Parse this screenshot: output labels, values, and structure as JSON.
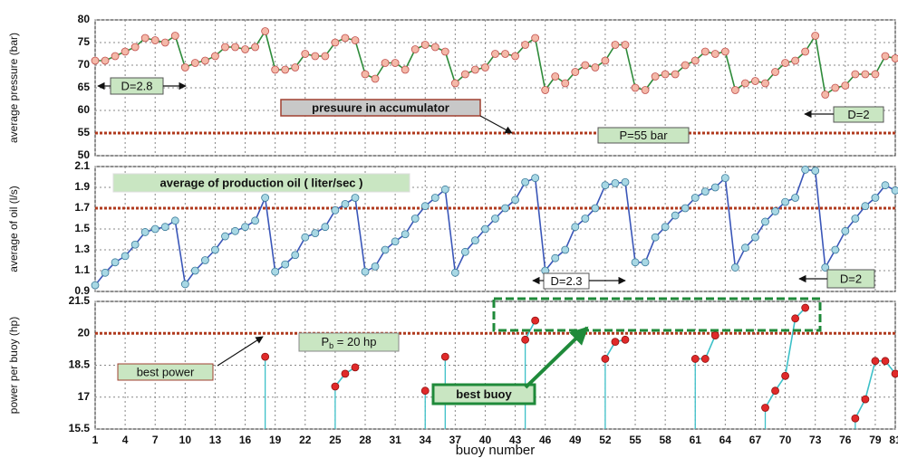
{
  "chart_data": [
    {
      "type": "line",
      "y_label": "average pressure (bar)",
      "x": [
        1,
        2,
        3,
        4,
        5,
        6,
        7,
        8,
        9,
        10,
        11,
        12,
        13,
        14,
        15,
        16,
        17,
        18,
        19,
        20,
        21,
        22,
        23,
        24,
        25,
        26,
        27,
        28,
        29,
        30,
        31,
        32,
        33,
        34,
        35,
        36,
        37,
        38,
        39,
        40,
        41,
        42,
        43,
        44,
        45,
        46,
        47,
        48,
        49,
        50,
        51,
        52,
        53,
        54,
        55,
        56,
        57,
        58,
        59,
        60,
        61,
        62,
        63,
        64,
        65,
        66,
        67,
        68,
        69,
        70,
        71,
        72,
        73,
        74,
        75,
        76,
        77,
        78,
        79,
        80,
        81
      ],
      "series": [
        {
          "color": "#2e8b3a",
          "marker_color": "#f4b8a8",
          "marker_edge": "#c0504d",
          "values": [
            71,
            71,
            72,
            73,
            74,
            76,
            75.5,
            75,
            76.5,
            69.5,
            70.5,
            71,
            72,
            74,
            74,
            73.5,
            74,
            77.5,
            69,
            69,
            69.5,
            72.5,
            72,
            72,
            75,
            76,
            75.5,
            68,
            67,
            70.5,
            70.5,
            69,
            73.5,
            74.5,
            74,
            73,
            66,
            68,
            69,
            69.5,
            72.5,
            72.5,
            72,
            74.5,
            76,
            64.5,
            67.5,
            66,
            68.5,
            70,
            69.5,
            71,
            74.5,
            74.5,
            65,
            64.5,
            67.5,
            68,
            68,
            70,
            71,
            73,
            72.5,
            73,
            64.5,
            66,
            66.5,
            66,
            68.5,
            70.5,
            71,
            73,
            76.5,
            63.5,
            65,
            65.5,
            68,
            68,
            68,
            72,
            71.5
          ]
        }
      ],
      "ylim": [
        50,
        80
      ],
      "yticks": [
        50,
        55,
        60,
        65,
        70,
        75,
        80
      ],
      "reference_line": {
        "value": 55,
        "color": "#b03a1e"
      },
      "annotations": [
        {
          "text": "D=2.8"
        },
        {
          "text": "presuure in accumulator"
        },
        {
          "text": "P=55 bar"
        },
        {
          "text": "D=2"
        }
      ],
      "grid": true
    },
    {
      "type": "line",
      "y_label": "average of oil (l/s)",
      "x": [
        1,
        2,
        3,
        4,
        5,
        6,
        7,
        8,
        9,
        10,
        11,
        12,
        13,
        14,
        15,
        16,
        17,
        18,
        19,
        20,
        21,
        22,
        23,
        24,
        25,
        26,
        27,
        28,
        29,
        30,
        31,
        32,
        33,
        34,
        35,
        36,
        37,
        38,
        39,
        40,
        41,
        42,
        43,
        44,
        45,
        46,
        47,
        48,
        49,
        50,
        51,
        52,
        53,
        54,
        55,
        56,
        57,
        58,
        59,
        60,
        61,
        62,
        63,
        64,
        65,
        66,
        67,
        68,
        69,
        70,
        71,
        72,
        73,
        74,
        75,
        76,
        77,
        78,
        79,
        80,
        81
      ],
      "series": [
        {
          "color": "#3a56b8",
          "marker_color": "#a8d8e4",
          "marker_edge": "#3a7a9a",
          "values": [
            0.96,
            1.08,
            1.18,
            1.24,
            1.35,
            1.47,
            1.5,
            1.52,
            1.58,
            0.97,
            1.1,
            1.2,
            1.3,
            1.43,
            1.48,
            1.52,
            1.58,
            1.8,
            1.09,
            1.16,
            1.25,
            1.42,
            1.46,
            1.52,
            1.68,
            1.74,
            1.8,
            1.09,
            1.14,
            1.3,
            1.38,
            1.45,
            1.6,
            1.72,
            1.8,
            1.88,
            1.08,
            1.28,
            1.39,
            1.5,
            1.6,
            1.7,
            1.78,
            1.95,
            1.99,
            1.1,
            1.22,
            1.3,
            1.52,
            1.6,
            1.7,
            1.92,
            1.94,
            1.95,
            1.18,
            1.18,
            1.42,
            1.52,
            1.63,
            1.7,
            1.8,
            1.86,
            1.9,
            1.99,
            1.13,
            1.32,
            1.42,
            1.57,
            1.67,
            1.76,
            1.8,
            2.07,
            2.06,
            1.13,
            1.3,
            1.48,
            1.6,
            1.72,
            1.8,
            1.92,
            1.87
          ]
        }
      ],
      "ylim": [
        0.9,
        2.1
      ],
      "yticks": [
        0.9,
        1.1,
        1.3,
        1.5,
        1.7,
        1.9,
        2.1
      ],
      "reference_line": {
        "value": 1.7,
        "color": "#b03a1e"
      },
      "annotations": [
        {
          "text": "average of production oil ( liter/sec )"
        },
        {
          "text": "D=2.3"
        },
        {
          "text": "D=2"
        }
      ],
      "grid": true
    },
    {
      "type": "line",
      "y_label": "power per buoy (hp)",
      "x_label": "buoy number",
      "x": [
        1,
        2,
        3,
        4,
        5,
        6,
        7,
        8,
        9,
        10,
        11,
        12,
        13,
        14,
        15,
        16,
        17,
        18,
        19,
        20,
        21,
        22,
        23,
        24,
        25,
        26,
        27,
        28,
        29,
        30,
        31,
        32,
        33,
        34,
        35,
        36,
        37,
        38,
        39,
        40,
        41,
        42,
        43,
        44,
        45,
        46,
        47,
        48,
        49,
        50,
        51,
        52,
        53,
        54,
        55,
        56,
        57,
        58,
        59,
        60,
        61,
        62,
        63,
        64,
        65,
        66,
        67,
        68,
        69,
        70,
        71,
        72,
        73,
        74,
        75,
        76,
        77,
        78,
        79,
        80,
        81
      ],
      "series": [
        {
          "color": "#3cc0c8",
          "marker_color": "#e02a2a",
          "marker_edge": "#901010",
          "values": [
            null,
            null,
            null,
            null,
            null,
            null,
            null,
            null,
            null,
            null,
            null,
            null,
            null,
            null,
            null,
            null,
            null,
            18.9,
            null,
            null,
            null,
            null,
            null,
            null,
            17.5,
            18.1,
            18.4,
            null,
            null,
            null,
            null,
            null,
            null,
            17.3,
            null,
            18.9,
            null,
            null,
            null,
            null,
            null,
            null,
            null,
            19.7,
            20.6,
            null,
            null,
            null,
            null,
            null,
            null,
            18.8,
            19.6,
            19.7,
            null,
            null,
            null,
            null,
            null,
            null,
            18.8,
            18.8,
            19.9,
            null,
            null,
            null,
            null,
            16.5,
            17.3,
            18,
            20.7,
            21.2,
            null,
            null,
            null,
            null,
            16,
            16.9,
            18.7,
            18.7,
            18.1
          ]
        }
      ],
      "ylim": [
        15.5,
        21.5
      ],
      "yticks": [
        15.5,
        17,
        18.5,
        20,
        21.5
      ],
      "xlim": [
        1,
        81
      ],
      "xticks": [
        1,
        4,
        7,
        10,
        13,
        16,
        19,
        22,
        25,
        28,
        31,
        34,
        37,
        40,
        43,
        46,
        49,
        52,
        55,
        58,
        61,
        64,
        67,
        70,
        73,
        76,
        79,
        81
      ],
      "reference_line": {
        "value": 20,
        "color": "#b03a1e"
      },
      "annotations": [
        {
          "text": "P",
          "subscript": "b",
          "text_after": " = 20 hp"
        },
        {
          "text": "best power"
        },
        {
          "text": "best buoy"
        }
      ],
      "grid": true
    }
  ]
}
